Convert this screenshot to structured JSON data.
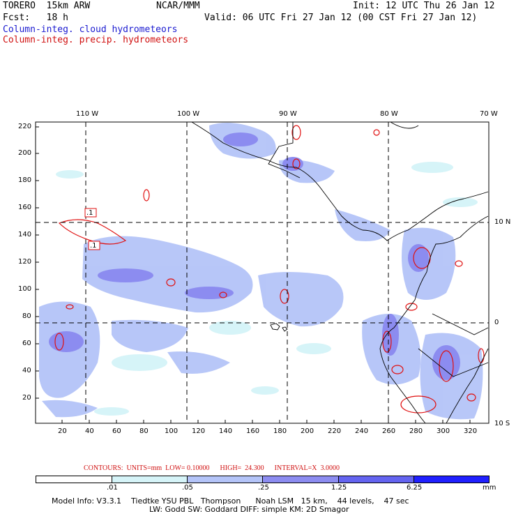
{
  "header": {
    "model": "TORERO  15km ARW",
    "org": "NCAR/MMM",
    "init": "Init: 12 UTC Thu 26 Jan 12",
    "fcst": "Fcst:   18 h",
    "valid": "Valid: 06 UTC Fri 27 Jan 12 (00 CST Fri 27 Jan 12)",
    "field1": "Column-integ. cloud hydrometeors",
    "field2": "Column-integ. precip. hydrometeors",
    "field1_color": "#1a1ad0",
    "field2_color": "#d01010"
  },
  "map": {
    "top_lon_labels": [
      "110 W",
      "100 W",
      "90 W",
      "80 W",
      "70 W"
    ],
    "right_lat_labels": [
      "10 N",
      "0",
      "10 S"
    ],
    "left_grid_labels": [
      "220",
      "200",
      "180",
      "160",
      "140",
      "120",
      "100",
      "80",
      "60",
      "40",
      "20"
    ],
    "bottom_grid_labels": [
      "20",
      "40",
      "60",
      "80",
      "100",
      "120",
      "140",
      "160",
      "180",
      "200",
      "220",
      "240",
      "260",
      "280",
      "300",
      "320"
    ],
    "contour_labels": [
      ".1",
      ".1"
    ]
  },
  "contour_info": {
    "label": "CONTOURS:  UNITS=mm  LOW= 0.10000      HIGH=  24.300      INTERVAL=X  3.0000"
  },
  "colorbar": {
    "ticks": [
      ".01",
      ".05",
      ".25",
      "1.25",
      "6.25"
    ],
    "unit": "mm",
    "colors": [
      "#ffffff",
      "#d6f4f8",
      "#b4c4f8",
      "#8c8cf0",
      "#6464f0",
      "#3c3cf0",
      "#2020ff"
    ]
  },
  "footer": {
    "line1": "Model Info: V3.3.1    Tiedtke YSU PBL   Thompson      Noah LSM   15 km,    44 levels,    47 sec",
    "line2": "LW: Godd SW: Goddard DIFF: simple KM: 2D Smagor"
  }
}
